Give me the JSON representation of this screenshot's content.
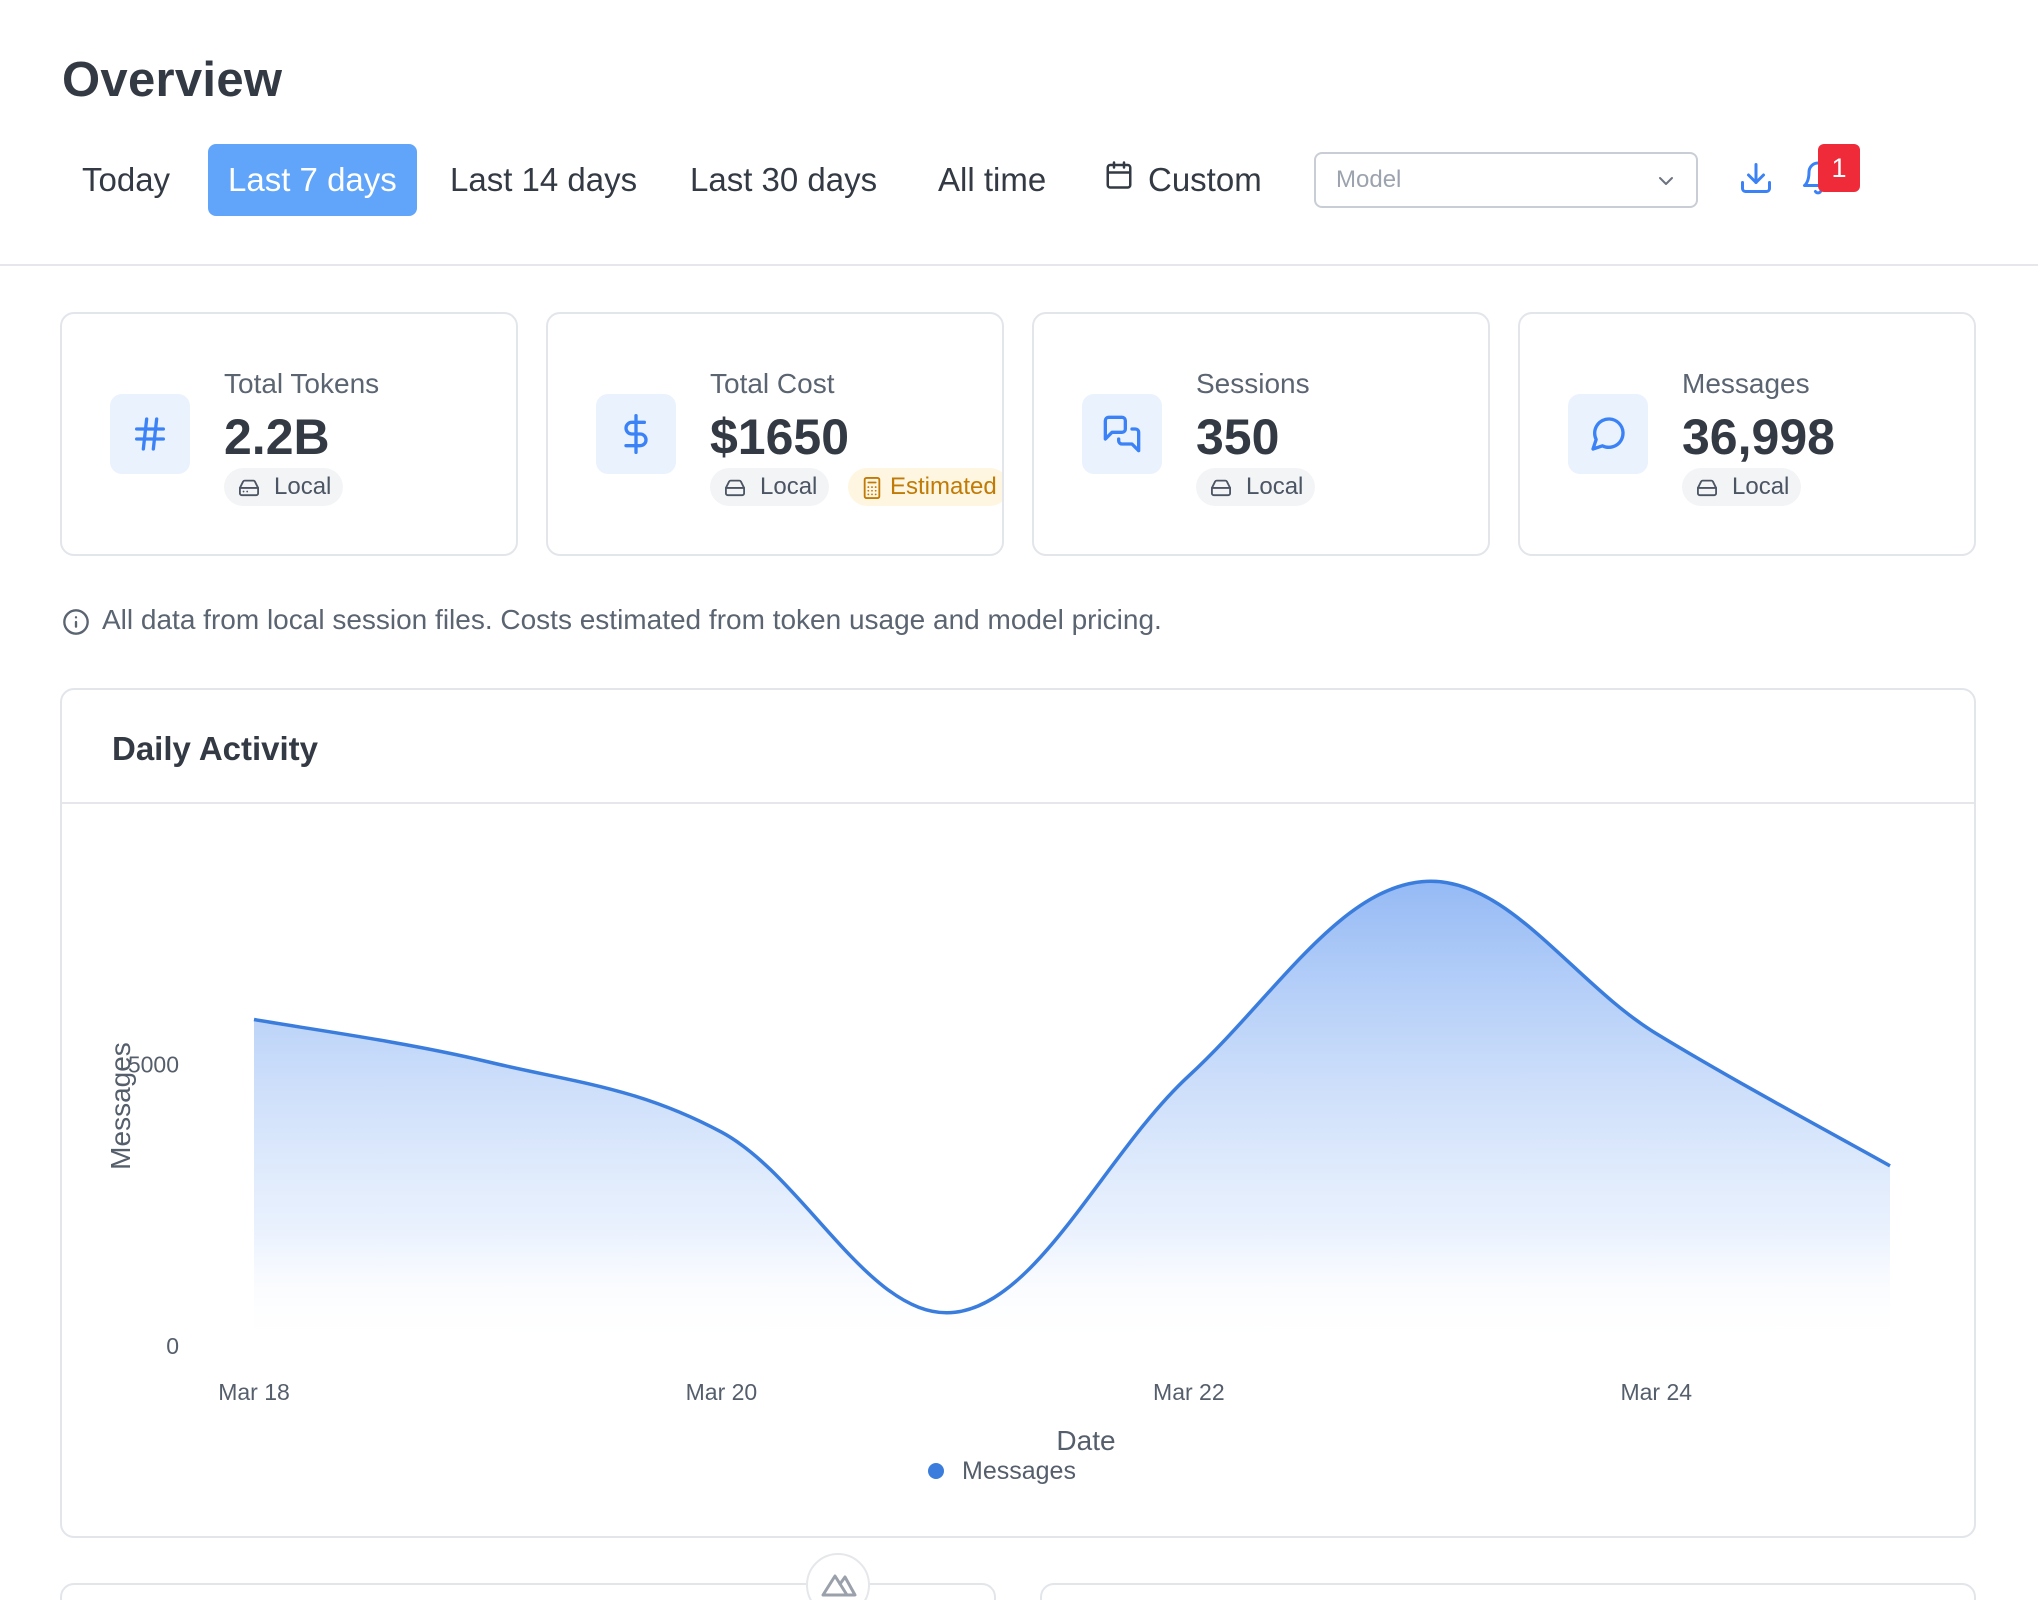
{
  "header": {
    "title": "Overview",
    "ranges": [
      "Today",
      "Last 7 days",
      "Last 14 days",
      "Last 30 days",
      "All time"
    ],
    "active_range": "Last 7 days",
    "custom_label": "Custom",
    "model_placeholder": "Model",
    "notification_count": "1"
  },
  "stats": [
    {
      "label": "Total Tokens",
      "value": "2.2B",
      "icon": "hash-icon",
      "tags": [
        "Local"
      ]
    },
    {
      "label": "Total Cost",
      "value": "$1650",
      "icon": "dollar-icon",
      "tags": [
        "Local",
        "Estimated"
      ]
    },
    {
      "label": "Sessions",
      "value": "350",
      "icon": "chat-bubbles-icon",
      "tags": [
        "Local"
      ]
    },
    {
      "label": "Messages",
      "value": "36,998",
      "icon": "message-circle-icon",
      "tags": [
        "Local"
      ]
    }
  ],
  "info_note": "All data from local session files. Costs estimated from token usage and model pricing.",
  "chart_card": {
    "title": "Daily Activity"
  },
  "chart_data": {
    "type": "area",
    "title": "Daily Activity",
    "x": [
      "Mar 18",
      "Mar 19",
      "Mar 20",
      "Mar 21",
      "Mar 22",
      "Mar 23",
      "Mar 24",
      "Mar 25"
    ],
    "x_tick_labels": [
      "Mar 18",
      "Mar 20",
      "Mar 22",
      "Mar 24"
    ],
    "series": [
      {
        "name": "Messages",
        "values": [
          5800,
          5050,
          3800,
          600,
          4800,
          8250,
          5550,
          3200
        ]
      }
    ],
    "xlabel": "Date",
    "ylabel": "Messages",
    "y_ticks": [
      0,
      5000
    ],
    "ylim": [
      0,
      9700
    ],
    "legend": "bottom-center",
    "grid": false,
    "line_color": "#3b7ddd"
  },
  "colors": {
    "accent": "#60a5fa",
    "icon_blue": "#3b82f6",
    "badge_red": "#ef2b3a",
    "estimated_amber": "#c07a06"
  }
}
